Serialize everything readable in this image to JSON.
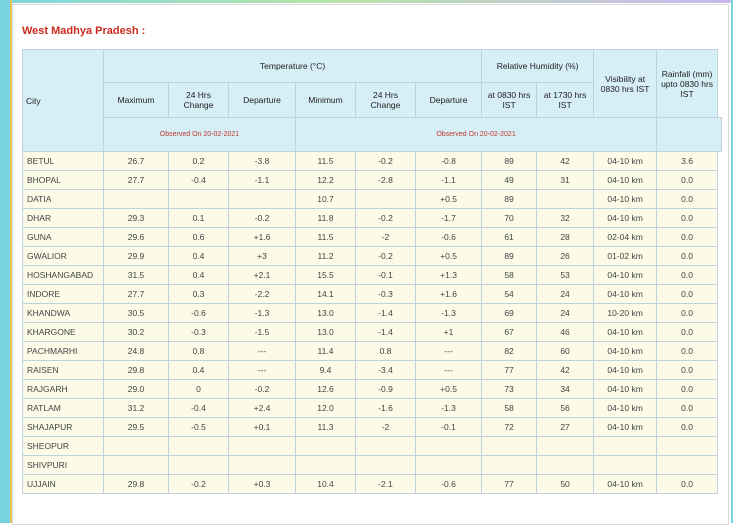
{
  "section_title": "West Madhya Pradesh :",
  "headers": {
    "city": "City",
    "temperature": "Temperature (°C)",
    "humidity": "Relative Humidity (%)",
    "visibility": "Visibility at 0830 hrs IST",
    "rainfall": "Rainfall (mm) upto 0830 hrs IST",
    "maximum": "Maximum",
    "change_max": "24 Hrs Change",
    "departure_max": "Departure",
    "minimum": "Minimum",
    "change_min": "24 Hrs Change",
    "departure_min": "Departure",
    "rh_0830": "at 0830 hrs IST",
    "rh_1730": "at 1730 hrs IST",
    "observed_max": "Observed On 20-02-2021",
    "observed_min": "Observed On 20-02-2021"
  },
  "rows": [
    [
      "BETUL",
      "26.7",
      "0.2",
      "-3.8",
      "11.5",
      "-0.2",
      "-0.8",
      "89",
      "42",
      "04-10 km",
      "3.6"
    ],
    [
      "BHOPAL",
      "27.7",
      "-0.4",
      "-1.1",
      "12.2",
      "-2.8",
      "-1.1",
      "49",
      "31",
      "04-10 km",
      "0.0"
    ],
    [
      "DATIA",
      "",
      "",
      "",
      "10.7",
      "",
      "+0.5",
      "89",
      "",
      "04-10 km",
      "0.0"
    ],
    [
      "DHAR",
      "29.3",
      "0.1",
      "-0.2",
      "11.8",
      "-0.2",
      "-1.7",
      "70",
      "32",
      "04-10 km",
      "0.0"
    ],
    [
      "GUNA",
      "29.6",
      "0.6",
      "+1.6",
      "11.5",
      "-2",
      "-0.6",
      "61",
      "28",
      "02-04 km",
      "0.0"
    ],
    [
      "GWALIOR",
      "29.9",
      "0.4",
      "+3",
      "11.2",
      "-0.2",
      "+0.5",
      "89",
      "26",
      "01-02 km",
      "0.0"
    ],
    [
      "HOSHANGABAD",
      "31.5",
      "0.4",
      "+2.1",
      "15.5",
      "-0.1",
      "+1.3",
      "58",
      "53",
      "04-10 km",
      "0.0"
    ],
    [
      "INDORE",
      "27.7",
      "0.3",
      "-2.2",
      "14.1",
      "-0.3",
      "+1.6",
      "54",
      "24",
      "04-10 km",
      "0.0"
    ],
    [
      "KHANDWA",
      "30.5",
      "-0.6",
      "-1.3",
      "13.0",
      "-1.4",
      "-1.3",
      "69",
      "24",
      "10-20 km",
      "0.0"
    ],
    [
      "KHARGONE",
      "30.2",
      "-0.3",
      "-1.5",
      "13.0",
      "-1.4",
      "+1",
      "67",
      "46",
      "04-10 km",
      "0.0"
    ],
    [
      "PACHMARHI",
      "24.8",
      "0.8",
      "---",
      "11.4",
      "0.8",
      "---",
      "82",
      "60",
      "04-10 km",
      "0.0"
    ],
    [
      "RAISEN",
      "29.8",
      "0.4",
      "---",
      "9.4",
      "-3.4",
      "---",
      "77",
      "42",
      "04-10 km",
      "0.0"
    ],
    [
      "RAJGARH",
      "29.0",
      "0",
      "-0.2",
      "12.6",
      "-0.9",
      "+0.5",
      "73",
      "34",
      "04-10 km",
      "0.0"
    ],
    [
      "RATLAM",
      "31.2",
      "-0.4",
      "+2.4",
      "12.0",
      "-1.6",
      "-1.3",
      "58",
      "56",
      "04-10 km",
      "0.0"
    ],
    [
      "SHAJAPUR",
      "29.5",
      "-0.5",
      "+0.1",
      "11.3",
      "-2",
      "-0.1",
      "72",
      "27",
      "04-10 km",
      "0.0"
    ],
    [
      "SHEOPUR",
      "",
      "",
      "",
      "",
      "",
      "",
      "",
      "",
      "",
      ""
    ],
    [
      "SHIVPURI",
      "",
      "",
      "",
      "",
      "",
      "",
      "",
      "",
      "",
      ""
    ],
    [
      "UJJAIN",
      "29.8",
      "-0.2",
      "+0.3",
      "10.4",
      "-2.1",
      "-0.6",
      "77",
      "50",
      "04-10 km",
      "0.0"
    ]
  ]
}
